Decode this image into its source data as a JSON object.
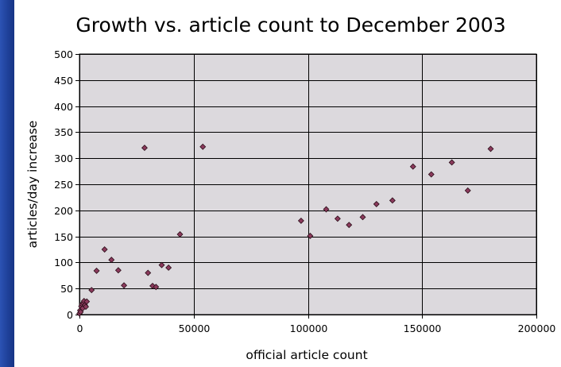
{
  "chart_data": {
    "type": "scatter",
    "title": "Growth vs. article count to December 2003",
    "xlabel": "official article count",
    "ylabel": "articles/day increase",
    "xlim": [
      0,
      200000
    ],
    "ylim": [
      0,
      500
    ],
    "x_ticks": [
      0,
      50000,
      100000,
      150000,
      200000
    ],
    "y_ticks": [
      0,
      50,
      100,
      150,
      200,
      250,
      300,
      350,
      400,
      450,
      500
    ],
    "grid": "major gridlines on both axes",
    "legend": "none",
    "colors": {
      "plot_background": "#dcd9dd",
      "marker_fill": "#8b3a5c",
      "marker_edge": "#2a0d18",
      "grid": "#000000",
      "slide_background": "#1d3f95"
    },
    "points": [
      {
        "x": 0,
        "y": 2
      },
      {
        "x": 300,
        "y": 8
      },
      {
        "x": 500,
        "y": 5
      },
      {
        "x": 800,
        "y": 16
      },
      {
        "x": 1100,
        "y": 20
      },
      {
        "x": 1400,
        "y": 12
      },
      {
        "x": 1700,
        "y": 22
      },
      {
        "x": 2000,
        "y": 26
      },
      {
        "x": 2400,
        "y": 18
      },
      {
        "x": 2800,
        "y": 15
      },
      {
        "x": 3200,
        "y": 25
      },
      {
        "x": 5300,
        "y": 47
      },
      {
        "x": 7500,
        "y": 84
      },
      {
        "x": 11000,
        "y": 125
      },
      {
        "x": 14000,
        "y": 105
      },
      {
        "x": 17000,
        "y": 85
      },
      {
        "x": 19500,
        "y": 56
      },
      {
        "x": 28500,
        "y": 320
      },
      {
        "x": 30000,
        "y": 80
      },
      {
        "x": 32000,
        "y": 55
      },
      {
        "x": 33500,
        "y": 53
      },
      {
        "x": 36000,
        "y": 95
      },
      {
        "x": 39000,
        "y": 90
      },
      {
        "x": 44000,
        "y": 154
      },
      {
        "x": 54000,
        "y": 322
      },
      {
        "x": 97000,
        "y": 180
      },
      {
        "x": 101000,
        "y": 151
      },
      {
        "x": 108000,
        "y": 202
      },
      {
        "x": 113000,
        "y": 184
      },
      {
        "x": 118000,
        "y": 172
      },
      {
        "x": 124000,
        "y": 187
      },
      {
        "x": 130000,
        "y": 212
      },
      {
        "x": 137000,
        "y": 219
      },
      {
        "x": 146000,
        "y": 284
      },
      {
        "x": 154000,
        "y": 269
      },
      {
        "x": 163000,
        "y": 292
      },
      {
        "x": 170000,
        "y": 238
      },
      {
        "x": 180000,
        "y": 318
      }
    ]
  }
}
